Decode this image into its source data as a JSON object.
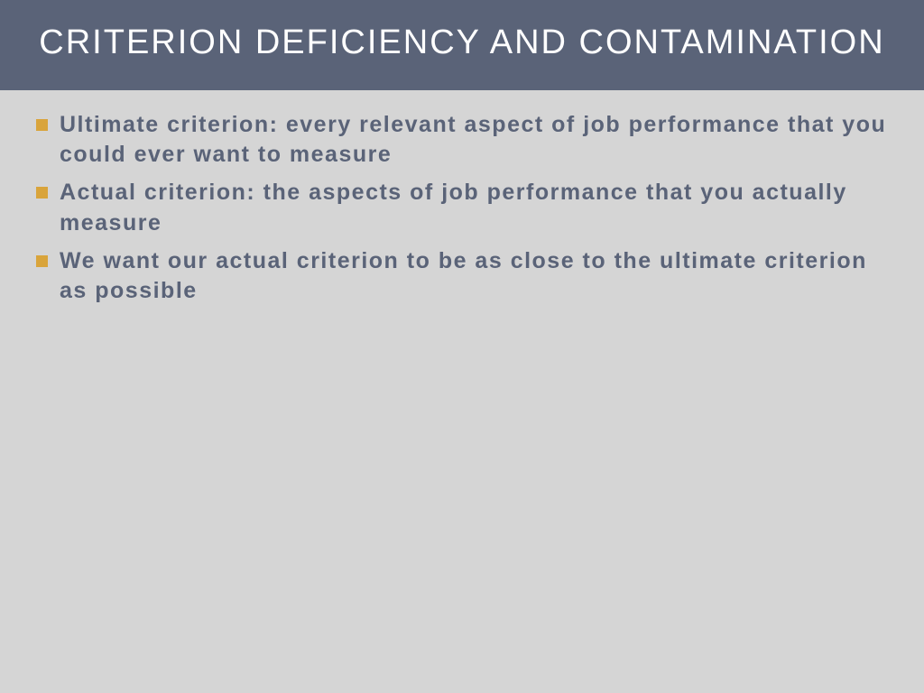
{
  "slide": {
    "title": "CRITERION DEFICIENCY AND CONTAMINATION",
    "bullets": [
      "Ultimate criterion: every relevant aspect of job performance that you could ever want to measure",
      "Actual criterion: the aspects of job performance that you actually measure",
      "We want our actual criterion to be as close to the ultimate criterion as possible"
    ],
    "colors": {
      "background": "#d5d5d5",
      "title_bar": "#5a6378",
      "title_text": "#ffffff",
      "body_text": "#5a6378",
      "bullet_marker": "#d9a43b"
    },
    "typography": {
      "title_fontsize": 38,
      "title_letter_spacing": 2,
      "body_fontsize": 25,
      "body_weight": 600,
      "body_letter_spacing": 1.5
    }
  }
}
